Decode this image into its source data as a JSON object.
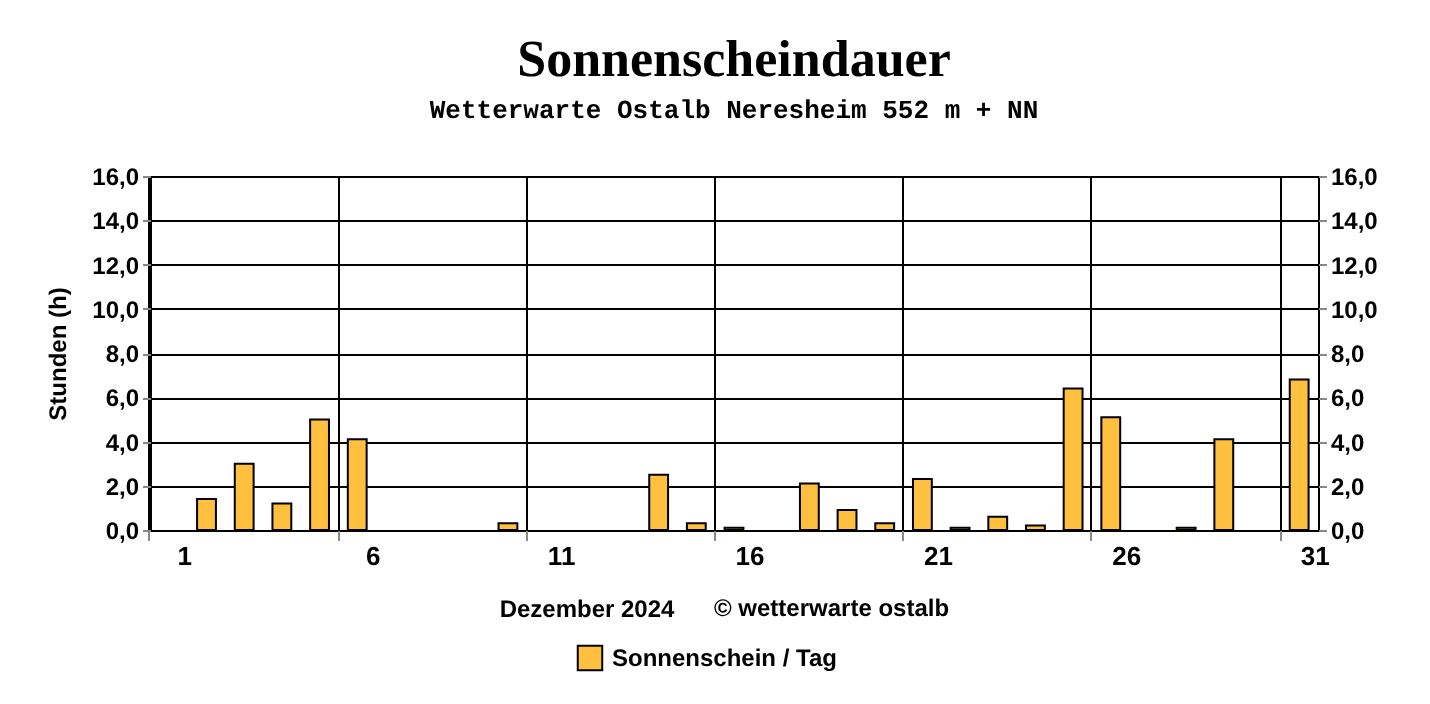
{
  "chart_data": {
    "type": "bar",
    "title": "Sonnenscheindauer",
    "subtitle": "Wetterwarte Ostalb Neresheim 552 m + NN",
    "xlabel": "Dezember 2024",
    "ylabel": "Stunden  (h)",
    "annotations": [
      "© wetterwarte ostalb"
    ],
    "categories": [
      "1",
      null,
      null,
      null,
      null,
      "6",
      null,
      null,
      null,
      null,
      "11",
      null,
      null,
      null,
      null,
      "16",
      null,
      null,
      null,
      null,
      "21",
      null,
      null,
      null,
      null,
      "26",
      null,
      null,
      null,
      null,
      "31"
    ],
    "series": [
      {
        "name": "Sonnenschein / Tag",
        "color": "#ffc040",
        "values": [
          0,
          1.4,
          3.0,
          1.2,
          5.0,
          4.1,
          0,
          0,
          0,
          0.3,
          0,
          0,
          0,
          2.5,
          0.3,
          0.1,
          0,
          2.1,
          0.9,
          0.3,
          2.3,
          0.1,
          0.6,
          0.2,
          6.4,
          5.1,
          0,
          0.1,
          4.1,
          0,
          6.8
        ]
      }
    ],
    "ylim": [
      0,
      16
    ],
    "yticks": [
      {
        "value": 0,
        "label": "0,0"
      },
      {
        "value": 2,
        "label": "2,0"
      },
      {
        "value": 4,
        "label": "4,0"
      },
      {
        "value": 6,
        "label": "6,0"
      },
      {
        "value": 8,
        "label": "8,0"
      },
      {
        "value": 10,
        "label": "10,0"
      },
      {
        "value": 12,
        "label": "12,0"
      },
      {
        "value": 14,
        "label": "14,0"
      },
      {
        "value": 16,
        "label": "16,0"
      }
    ],
    "y2lim": [
      0,
      16
    ],
    "y2ticks": [
      {
        "value": 0,
        "label": "0,0"
      },
      {
        "value": 2,
        "label": "2,0"
      },
      {
        "value": 4,
        "label": "4,0"
      },
      {
        "value": 6,
        "label": "6,0"
      },
      {
        "value": 8,
        "label": "8,0"
      },
      {
        "value": 10,
        "label": "10,0"
      },
      {
        "value": 12,
        "label": "12,0"
      },
      {
        "value": 14,
        "label": "14,0"
      },
      {
        "value": 16,
        "label": "16,0"
      }
    ],
    "grid": true,
    "legend": "bottom"
  }
}
